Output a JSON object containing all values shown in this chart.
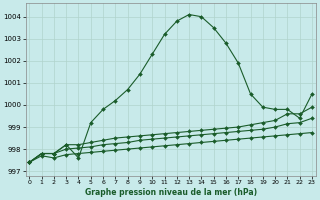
{
  "xlabel": "Graphe pression niveau de la mer (hPa)",
  "background_color": "#c8eaea",
  "grid_color": "#b0d4cc",
  "line_color": "#1a5c2a",
  "x_ticks": [
    0,
    1,
    2,
    3,
    4,
    5,
    6,
    7,
    8,
    9,
    10,
    11,
    12,
    13,
    14,
    15,
    16,
    17,
    18,
    19,
    20,
    21,
    22,
    23
  ],
  "ylim": [
    996.8,
    1004.6
  ],
  "xlim": [
    -0.3,
    23.3
  ],
  "series": [
    [
      997.4,
      997.8,
      997.8,
      998.2,
      997.6,
      999.2,
      999.8,
      1000.2,
      1000.7,
      1001.4,
      1002.3,
      1003.2,
      1003.8,
      1004.1,
      1004.0,
      1003.5,
      1002.8,
      1001.9,
      1000.5,
      999.9,
      999.8,
      999.8,
      999.4,
      1000.5
    ],
    [
      997.4,
      997.8,
      997.8,
      998.2,
      998.2,
      998.3,
      998.4,
      998.5,
      998.55,
      998.6,
      998.65,
      998.7,
      998.75,
      998.8,
      998.85,
      998.9,
      998.95,
      999.0,
      999.1,
      999.2,
      999.3,
      999.6,
      999.6,
      999.9
    ],
    [
      997.4,
      997.8,
      997.8,
      998.0,
      998.05,
      998.1,
      998.2,
      998.25,
      998.3,
      998.4,
      998.45,
      998.5,
      998.55,
      998.6,
      998.65,
      998.7,
      998.75,
      998.8,
      998.85,
      998.9,
      999.0,
      999.15,
      999.2,
      999.4
    ],
    [
      997.4,
      997.7,
      997.6,
      997.75,
      997.8,
      997.85,
      997.9,
      997.95,
      998.0,
      998.05,
      998.1,
      998.15,
      998.2,
      998.25,
      998.3,
      998.35,
      998.4,
      998.45,
      998.5,
      998.55,
      998.6,
      998.65,
      998.7,
      998.75
    ]
  ],
  "yticks": [
    997,
    998,
    999,
    1000,
    1001,
    1002,
    1003,
    1004
  ],
  "marker": "D",
  "markersize": 2.0,
  "linewidth": 0.8,
  "tick_labelsize": 5,
  "xlabel_fontsize": 5.5
}
